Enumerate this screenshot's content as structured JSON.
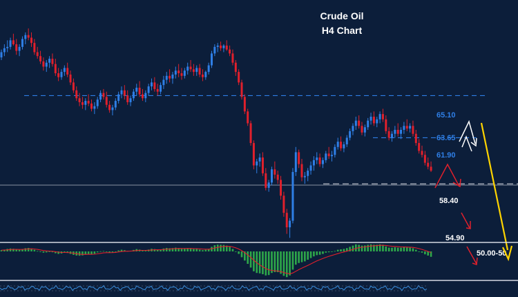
{
  "title_line1": "Crude Oil",
  "title_line2": "H4 Chart",
  "colors": {
    "background": "#0c1e3a",
    "bull": "#2f7fe6",
    "bear": "#e0202c",
    "level_line": "#2f7fe6",
    "support_line": "#c8ccd4",
    "projection": "#ffd400",
    "white_arrow": "#ffffff",
    "macd_up": "#2ea84a",
    "oscillator": "#3a8fe0"
  },
  "chart_data": {
    "type": "candlestick",
    "series": [
      {
        "values": [
          [
            68.0,
            68.6,
            67.8,
            68.4
          ],
          [
            68.4,
            69.0,
            68.1,
            68.7
          ],
          [
            68.7,
            69.3,
            68.4,
            68.8
          ],
          [
            68.8,
            69.5,
            68.6,
            69.3
          ],
          [
            69.3,
            69.8,
            68.9,
            69.0
          ],
          [
            69.0,
            69.4,
            68.2,
            68.5
          ],
          [
            68.5,
            69.0,
            68.1,
            68.8
          ],
          [
            68.8,
            69.6,
            68.6,
            69.4
          ],
          [
            69.4,
            69.9,
            69.0,
            69.7
          ],
          [
            69.7,
            70.2,
            69.3,
            69.5
          ],
          [
            69.5,
            69.9,
            68.8,
            69.1
          ],
          [
            69.1,
            69.4,
            68.2,
            68.4
          ],
          [
            68.4,
            68.8,
            67.9,
            68.1
          ],
          [
            68.1,
            68.5,
            67.5,
            67.7
          ],
          [
            67.7,
            68.0,
            67.0,
            67.3
          ],
          [
            67.3,
            67.8,
            66.9,
            67.6
          ],
          [
            67.6,
            68.1,
            67.2,
            67.9
          ],
          [
            67.9,
            68.3,
            67.3,
            67.5
          ],
          [
            67.5,
            67.9,
            66.6,
            66.8
          ],
          [
            66.8,
            67.2,
            66.2,
            66.5
          ],
          [
            66.5,
            67.1,
            66.3,
            66.9
          ],
          [
            66.9,
            67.4,
            66.6,
            67.2
          ],
          [
            67.2,
            67.6,
            66.5,
            66.7
          ],
          [
            66.7,
            67.0,
            65.9,
            66.1
          ],
          [
            66.1,
            66.4,
            65.3,
            65.5
          ],
          [
            65.5,
            65.8,
            64.7,
            64.9
          ],
          [
            64.9,
            65.3,
            64.3,
            64.6
          ],
          [
            64.6,
            65.0,
            64.1,
            64.4
          ],
          [
            64.4,
            64.9,
            64.0,
            64.7
          ],
          [
            64.7,
            65.2,
            64.3,
            64.5
          ],
          [
            64.5,
            64.8,
            63.9,
            64.1
          ],
          [
            64.1,
            64.6,
            63.7,
            64.3
          ],
          [
            64.3,
            65.0,
            64.1,
            64.8
          ],
          [
            64.8,
            65.5,
            64.6,
            65.3
          ],
          [
            65.3,
            65.6,
            64.8,
            65.0
          ],
          [
            65.0,
            65.4,
            64.2,
            64.4
          ],
          [
            64.4,
            64.7,
            63.8,
            64.0
          ],
          [
            64.0,
            64.4,
            63.6,
            64.2
          ],
          [
            64.2,
            64.9,
            64.0,
            64.7
          ],
          [
            64.7,
            65.4,
            64.5,
            65.2
          ],
          [
            65.2,
            65.8,
            64.9,
            65.5
          ],
          [
            65.5,
            65.9,
            64.8,
            65.1
          ],
          [
            65.1,
            65.5,
            64.4,
            64.6
          ],
          [
            64.6,
            65.1,
            64.3,
            64.9
          ],
          [
            64.9,
            65.6,
            64.7,
            65.4
          ],
          [
            65.4,
            66.0,
            65.1,
            65.7
          ],
          [
            65.7,
            66.2,
            65.0,
            65.2
          ],
          [
            65.2,
            65.6,
            64.7,
            64.9
          ],
          [
            64.9,
            65.5,
            64.6,
            65.3
          ],
          [
            65.3,
            66.0,
            65.1,
            65.8
          ],
          [
            65.8,
            66.4,
            65.5,
            66.1
          ],
          [
            66.1,
            66.5,
            65.4,
            65.6
          ],
          [
            65.6,
            66.0,
            65.1,
            65.4
          ],
          [
            65.4,
            66.1,
            65.2,
            65.9
          ],
          [
            65.9,
            66.6,
            65.6,
            66.3
          ],
          [
            66.3,
            66.9,
            66.0,
            66.6
          ],
          [
            66.6,
            67.1,
            66.1,
            66.4
          ],
          [
            66.4,
            66.9,
            66.0,
            66.7
          ],
          [
            66.7,
            67.3,
            66.4,
            67.0
          ],
          [
            67.0,
            67.5,
            66.5,
            66.8
          ],
          [
            66.8,
            67.2,
            66.3,
            66.6
          ],
          [
            66.6,
            67.2,
            66.4,
            67.0
          ],
          [
            67.0,
            67.6,
            66.7,
            67.3
          ],
          [
            67.3,
            67.8,
            66.9,
            67.1
          ],
          [
            67.1,
            67.5,
            66.6,
            66.9
          ],
          [
            66.9,
            67.4,
            66.6,
            67.2
          ],
          [
            67.2,
            67.5,
            66.5,
            66.7
          ],
          [
            66.7,
            67.1,
            66.2,
            66.5
          ],
          [
            66.5,
            67.0,
            66.3,
            66.9
          ],
          [
            66.9,
            67.6,
            66.7,
            67.4
          ],
          [
            67.4,
            68.5,
            67.2,
            68.3
          ],
          [
            68.3,
            69.0,
            68.1,
            68.8
          ],
          [
            68.8,
            69.1,
            68.4,
            68.9
          ],
          [
            68.9,
            69.2,
            68.5,
            68.7
          ],
          [
            68.7,
            69.0,
            68.4,
            68.9
          ],
          [
            68.9,
            69.3,
            68.5,
            68.6
          ],
          [
            68.6,
            68.9,
            68.1,
            68.3
          ],
          [
            68.3,
            68.6,
            67.4,
            67.6
          ],
          [
            67.6,
            67.8,
            66.6,
            66.9
          ],
          [
            66.9,
            67.1,
            65.9,
            66.1
          ],
          [
            66.1,
            66.3,
            64.8,
            65.0
          ],
          [
            65.0,
            65.2,
            63.7,
            63.9
          ],
          [
            63.9,
            64.1,
            62.8,
            63.0
          ],
          [
            63.0,
            63.2,
            61.3,
            61.5
          ],
          [
            61.5,
            61.7,
            59.5,
            59.8
          ],
          [
            59.8,
            60.3,
            59.2,
            60.1
          ],
          [
            60.1,
            60.7,
            59.7,
            60.4
          ],
          [
            60.4,
            60.8,
            59.0,
            59.2
          ],
          [
            59.2,
            59.6,
            57.9,
            58.1
          ],
          [
            58.1,
            58.7,
            57.8,
            58.5
          ],
          [
            58.5,
            59.7,
            58.3,
            59.5
          ],
          [
            59.5,
            60.1,
            58.8,
            59.1
          ],
          [
            59.1,
            59.4,
            58.4,
            58.7
          ],
          [
            58.7,
            59.0,
            57.2,
            57.5
          ],
          [
            57.5,
            57.8,
            55.9,
            56.2
          ],
          [
            56.2,
            56.5,
            54.6,
            55.1
          ],
          [
            55.1,
            55.8,
            54.3,
            55.6
          ],
          [
            55.6,
            59.6,
            55.4,
            59.3
          ],
          [
            59.3,
            61.2,
            59.0,
            60.8
          ],
          [
            60.8,
            61.0,
            59.6,
            59.9
          ],
          [
            59.9,
            60.3,
            58.6,
            58.9
          ],
          [
            58.9,
            59.3,
            58.4,
            59.0
          ],
          [
            59.0,
            59.6,
            58.6,
            59.4
          ],
          [
            59.4,
            60.1,
            59.1,
            59.8
          ],
          [
            59.8,
            60.5,
            59.4,
            60.2
          ],
          [
            60.2,
            60.8,
            59.9,
            60.4
          ],
          [
            60.4,
            60.7,
            59.7,
            59.9
          ],
          [
            59.9,
            60.4,
            59.6,
            60.2
          ],
          [
            60.2,
            60.9,
            60.0,
            60.7
          ],
          [
            60.7,
            61.2,
            60.3,
            60.5
          ],
          [
            60.5,
            60.9,
            60.1,
            60.6
          ],
          [
            60.6,
            61.4,
            60.4,
            61.2
          ],
          [
            61.2,
            61.9,
            61.0,
            61.6
          ],
          [
            61.6,
            62.0,
            60.9,
            61.1
          ],
          [
            61.1,
            61.6,
            60.8,
            61.4
          ],
          [
            61.4,
            62.1,
            61.2,
            61.9
          ],
          [
            61.9,
            62.6,
            61.7,
            62.4
          ],
          [
            62.4,
            63.0,
            62.1,
            62.8
          ],
          [
            62.8,
            63.5,
            62.5,
            63.2
          ],
          [
            63.2,
            63.6,
            62.6,
            62.8
          ],
          [
            62.8,
            63.1,
            62.1,
            62.3
          ],
          [
            62.3,
            62.9,
            62.0,
            62.7
          ],
          [
            62.7,
            63.4,
            62.5,
            63.2
          ],
          [
            63.2,
            63.8,
            62.9,
            63.5
          ],
          [
            63.5,
            63.9,
            62.8,
            63.0
          ],
          [
            63.0,
            63.5,
            62.7,
            63.3
          ],
          [
            63.3,
            63.9,
            63.0,
            63.7
          ],
          [
            63.7,
            64.1,
            63.1,
            63.3
          ],
          [
            63.3,
            63.6,
            62.2,
            62.4
          ],
          [
            62.4,
            62.7,
            61.7,
            61.9
          ],
          [
            61.9,
            62.4,
            61.6,
            62.2
          ],
          [
            62.2,
            62.8,
            61.9,
            62.5
          ],
          [
            62.5,
            63.0,
            62.0,
            62.2
          ],
          [
            62.2,
            62.7,
            61.8,
            62.5
          ],
          [
            62.5,
            63.1,
            62.2,
            62.8
          ],
          [
            62.8,
            63.3,
            62.4,
            62.6
          ],
          [
            62.6,
            63.0,
            62.3,
            62.8
          ],
          [
            62.8,
            63.2,
            62.0,
            62.2
          ],
          [
            62.2,
            62.5,
            61.3,
            61.5
          ],
          [
            61.5,
            61.8,
            60.7,
            60.9
          ],
          [
            60.9,
            61.3,
            60.4,
            60.6
          ],
          [
            60.6,
            60.9,
            59.8,
            60.0
          ],
          [
            60.0,
            60.4,
            59.5,
            59.7
          ],
          [
            59.7,
            60.1,
            59.3,
            59.4
          ]
        ]
      }
    ],
    "levels": [
      {
        "label": "65.10",
        "value": 65.1,
        "color": "#2f7fe6"
      },
      {
        "label": "63.65",
        "value": 63.65,
        "color": "#2f7fe6"
      },
      {
        "label": "61.90",
        "value": 61.9,
        "color": "#2f7fe6"
      },
      {
        "label": "58.40",
        "value": 58.4,
        "color": "#ffffff"
      },
      {
        "label": "54.90",
        "value": 54.9,
        "color": "#ffffff"
      },
      {
        "label": "50.00-50",
        "value": 50.0,
        "color": "#ffffff"
      }
    ],
    "support_lines": [
      65.1,
      61.9,
      58.4
    ],
    "oscillator_values": [
      0.15,
      0.22,
      0.3,
      0.35,
      0.32,
      0.25,
      0.2,
      0.28,
      0.38,
      0.42,
      0.35,
      0.2,
      0.05,
      -0.08,
      -0.15,
      -0.12,
      -0.05,
      -0.1,
      -0.22,
      -0.3,
      -0.25,
      -0.15,
      -0.18,
      -0.3,
      -0.42,
      -0.5,
      -0.52,
      -0.48,
      -0.38,
      -0.32,
      -0.35,
      -0.28,
      -0.12,
      0.02,
      0.05,
      -0.05,
      -0.15,
      -0.12,
      0.0,
      0.12,
      0.2,
      0.15,
      0.05,
      0.08,
      0.18,
      0.28,
      0.22,
      0.1,
      0.12,
      0.22,
      0.32,
      0.28,
      0.2,
      0.25,
      0.35,
      0.42,
      0.38,
      0.4,
      0.45,
      0.4,
      0.32,
      0.35,
      0.4,
      0.36,
      0.28,
      0.3,
      0.22,
      0.15,
      0.2,
      0.3,
      0.55,
      0.75,
      0.82,
      0.8,
      0.78,
      0.7,
      0.55,
      0.3,
      0.0,
      -0.3,
      -0.7,
      -1.1,
      -1.5,
      -1.95,
      -2.4,
      -2.6,
      -2.65,
      -2.75,
      -2.9,
      -2.85,
      -2.6,
      -2.5,
      -2.5,
      -2.7,
      -2.95,
      -3.1,
      -2.9,
      -2.2,
      -1.6,
      -1.4,
      -1.3,
      -1.2,
      -1.0,
      -0.8,
      -0.6,
      -0.45,
      -0.4,
      -0.3,
      -0.15,
      -0.1,
      -0.05,
      0.05,
      0.2,
      0.25,
      0.3,
      0.4,
      0.55,
      0.7,
      0.85,
      0.8,
      0.7,
      0.72,
      0.8,
      0.85,
      0.8,
      0.8,
      0.85,
      0.8,
      0.6,
      0.45,
      0.45,
      0.5,
      0.45,
      0.45,
      0.5,
      0.48,
      0.45,
      0.38,
      0.2,
      0.0,
      -0.15,
      -0.35,
      -0.5,
      -0.65
    ]
  }
}
